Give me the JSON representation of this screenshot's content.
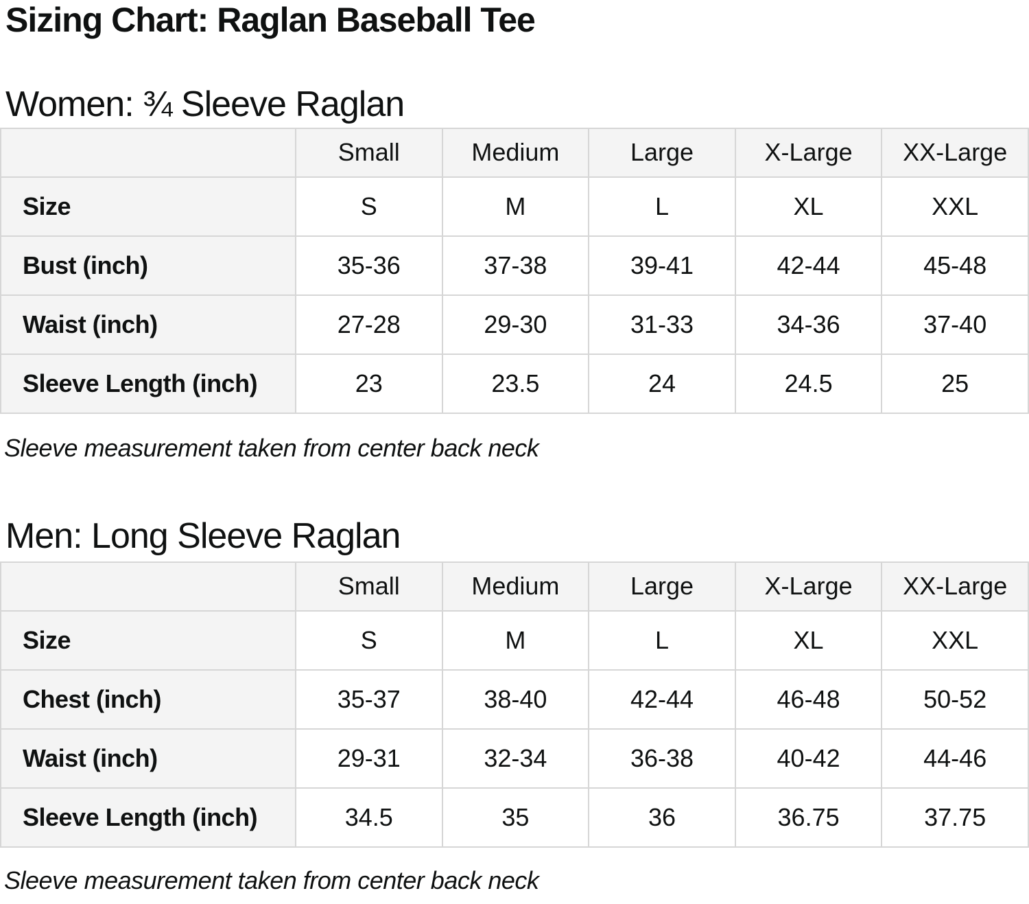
{
  "title": "Sizing Chart: Raglan Baseball Tee",
  "sections": [
    {
      "heading": "Women: ¾ Sleeve Raglan",
      "footnote": "Sleeve measurement taken from center back neck",
      "table": {
        "headers": [
          "",
          "Small",
          "Medium",
          "Large",
          "X-Large",
          "XX-Large"
        ],
        "rows": [
          {
            "label": "Size",
            "values": [
              "S",
              "M",
              "L",
              "XL",
              "XXL"
            ]
          },
          {
            "label": "Bust (inch)",
            "values": [
              "35-36",
              "37-38",
              "39-41",
              "42-44",
              "45-48"
            ]
          },
          {
            "label": "Waist (inch)",
            "values": [
              "27-28",
              "29-30",
              "31-33",
              "34-36",
              "37-40"
            ]
          },
          {
            "label": "Sleeve Length (inch)",
            "values": [
              "23",
              "23.5",
              "24",
              "24.5",
              "25"
            ]
          }
        ]
      }
    },
    {
      "heading": "Men: Long Sleeve Raglan",
      "footnote": "Sleeve measurement taken from center back neck",
      "table": {
        "headers": [
          "",
          "Small",
          "Medium",
          "Large",
          "X-Large",
          "XX-Large"
        ],
        "rows": [
          {
            "label": "Size",
            "values": [
              "S",
              "M",
              "L",
              "XL",
              "XXL"
            ]
          },
          {
            "label": "Chest (inch)",
            "values": [
              "35-37",
              "38-40",
              "42-44",
              "46-48",
              "50-52"
            ]
          },
          {
            "label": "Waist (inch)",
            "values": [
              "29-31",
              "32-34",
              "36-38",
              "40-42",
              "44-46"
            ]
          },
          {
            "label": "Sleeve Length (inch)",
            "values": [
              "34.5",
              "35",
              "36",
              "36.75",
              "37.75"
            ]
          }
        ]
      }
    }
  ]
}
